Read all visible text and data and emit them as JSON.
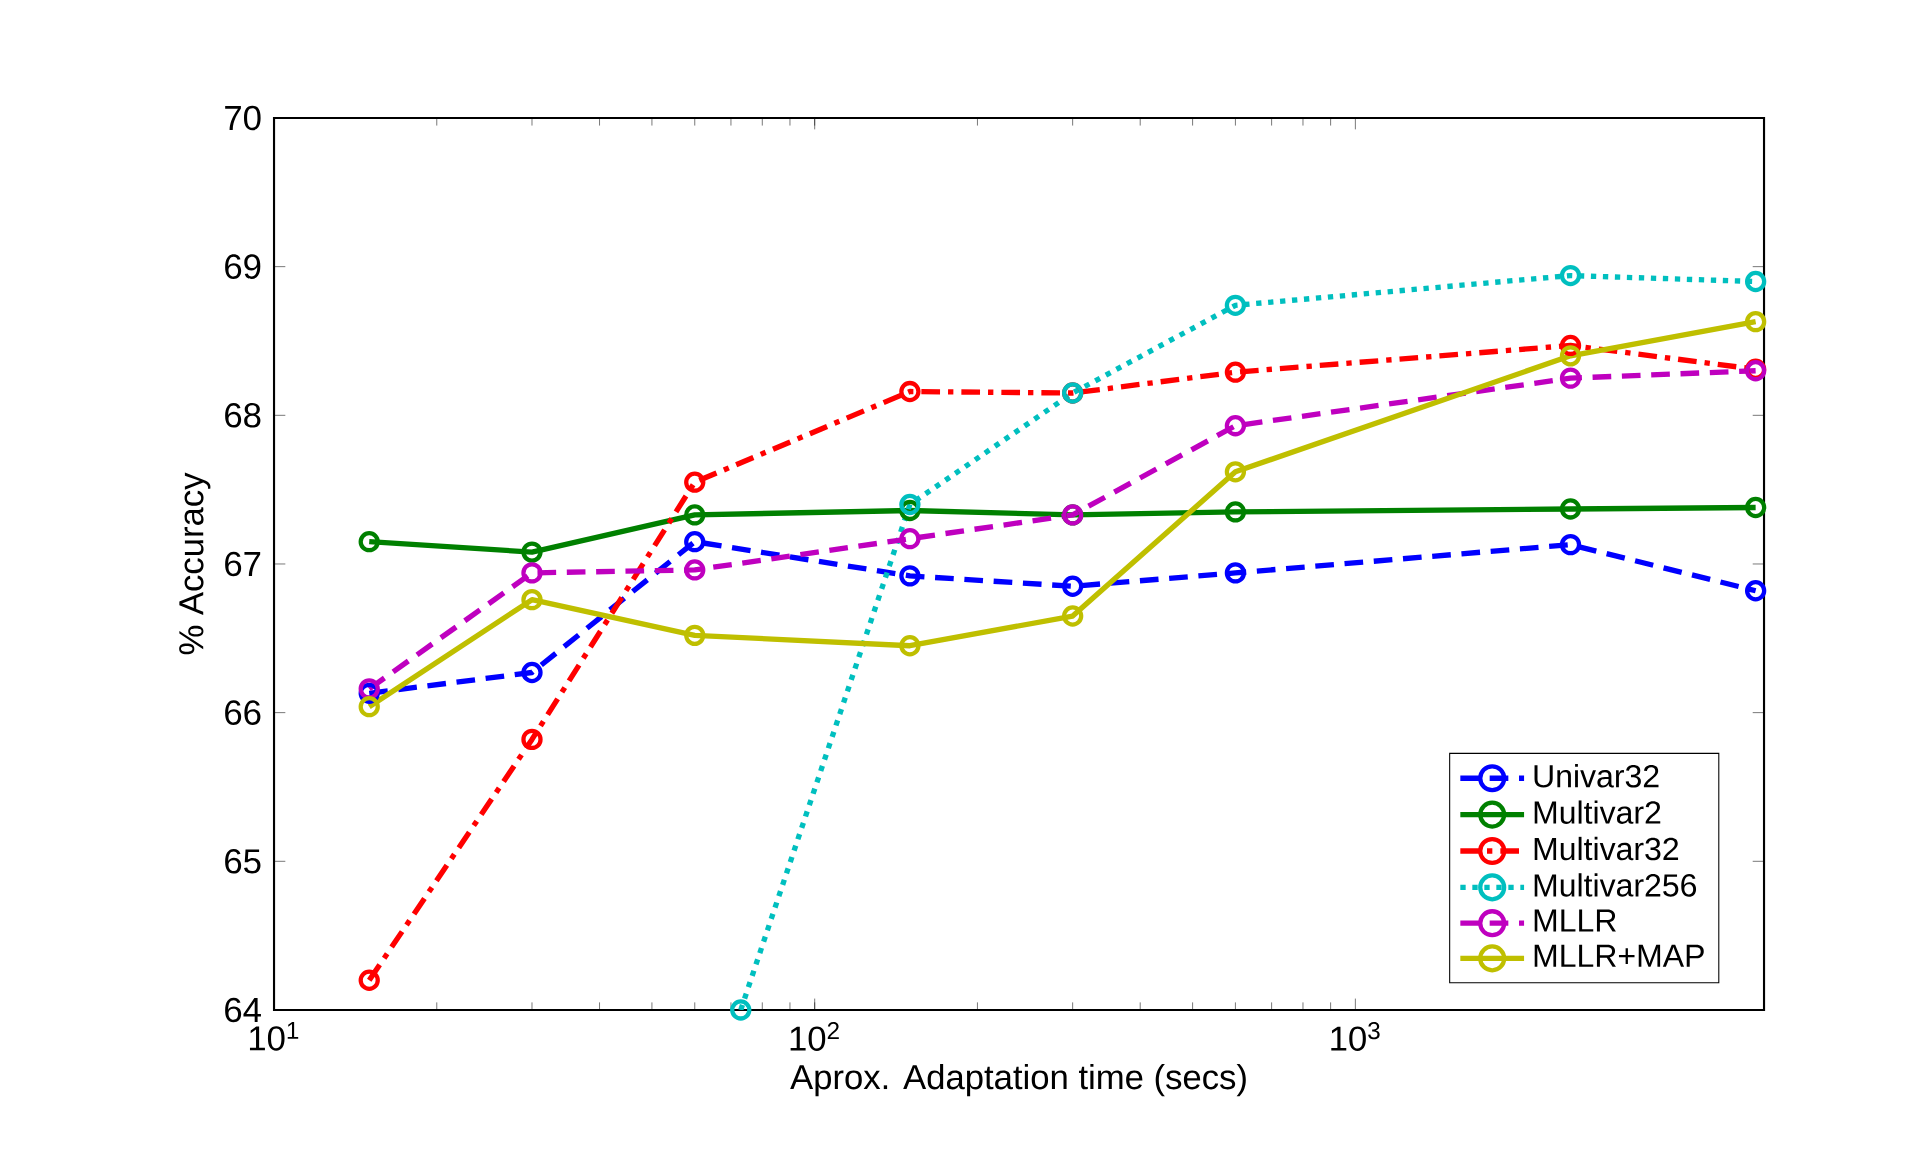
{
  "chart_data": {
    "type": "line",
    "xlabel": "Aprox. Adaptation time (secs)",
    "ylabel": "% Accuracy",
    "log": "x",
    "x": [
      15,
      30,
      60,
      150,
      300,
      600,
      2500,
      5500
    ],
    "xlim": [
      10,
      5700
    ],
    "ylim": [
      64,
      70
    ],
    "xticks": [
      {
        "value": 10,
        "label": "10$^{1}$"
      },
      {
        "value": 100,
        "label": "10$^{2}$"
      },
      {
        "value": 1000,
        "label": "10$^{3}$"
      }
    ],
    "yticks": [
      64,
      65,
      66,
      67,
      68,
      69,
      70
    ],
    "grid": false,
    "legend": "bottom right",
    "marker": "circle",
    "series": [
      {
        "name": "Univar32",
        "color": "#0000ff",
        "line_style": "dashed",
        "values": [
          66.13,
          66.27,
          67.15,
          66.92,
          66.85,
          66.94,
          67.13,
          66.82
        ]
      },
      {
        "name": "Multivar2",
        "color": "#008000",
        "line_style": "solid",
        "values": [
          67.15,
          67.08,
          67.33,
          67.36,
          67.33,
          67.35,
          67.37,
          67.38
        ]
      },
      {
        "name": "Multivar32",
        "color": "#ff0000",
        "line_style": "dashdot",
        "values": [
          64.2,
          65.82,
          67.55,
          68.16,
          68.15,
          68.29,
          68.47,
          68.31
        ]
      },
      {
        "name": "Multivar256",
        "color": "#00bfbf",
        "line_style": "dotted",
        "x": [
          73,
          150,
          300,
          600,
          2500,
          5500
        ],
        "values": [
          64,
          67.4,
          68.15,
          68.74,
          68.94,
          68.9
        ]
      },
      {
        "name": "MLLR",
        "color": "#bf00bf",
        "line_style": "dashed",
        "values": [
          66.16,
          66.94,
          66.96,
          67.17,
          67.33,
          67.93,
          68.25,
          68.3
        ]
      },
      {
        "name": "MLLR+MAP",
        "color": "#bfbf00",
        "line_style": "solid",
        "values": [
          66.04,
          66.76,
          66.52,
          66.45,
          66.65,
          67.62,
          68.4,
          68.63
        ]
      }
    ]
  }
}
